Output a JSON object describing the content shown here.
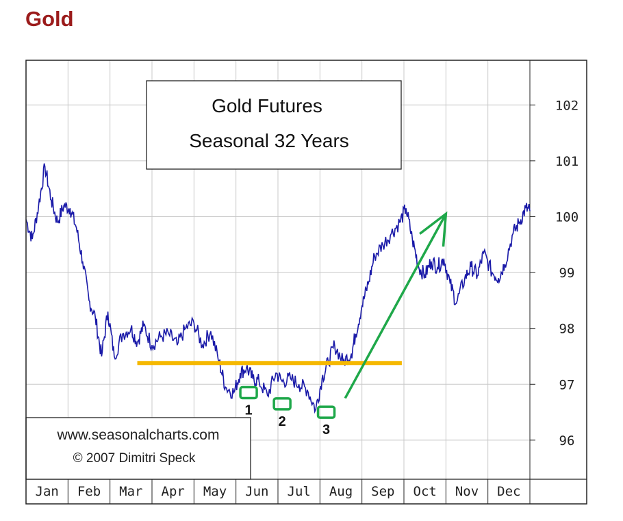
{
  "page": {
    "title": "Gold"
  },
  "colors": {
    "series": "#1a1aa8",
    "support_line": "#f5b800",
    "annotation": "#1fa84a",
    "grid": "#c8c8c8",
    "title": "#9b1b1b"
  },
  "chart_data": {
    "type": "line",
    "title": "Gold Futures",
    "subtitle": "Seasonal 32 Years",
    "credit_line1": "www.seasonalcharts.com",
    "credit_line2": "© 2007   Dimitri Speck",
    "x_categories": [
      "Jan",
      "Feb",
      "Mar",
      "Apr",
      "May",
      "Jun",
      "Jul",
      "Aug",
      "Sep",
      "Oct",
      "Nov",
      "Dec"
    ],
    "y_ticks": [
      96,
      97,
      98,
      99,
      100,
      101,
      102
    ],
    "ylim": [
      95.3,
      102.8
    ],
    "xlim": [
      0,
      12
    ],
    "grid": true,
    "series": [
      {
        "x": [
          0.0,
          0.15,
          0.3,
          0.45,
          0.6,
          0.75,
          0.9,
          1.05,
          1.2,
          1.35,
          1.5,
          1.65,
          1.8,
          1.95,
          2.1,
          2.3,
          2.5,
          2.65,
          2.8,
          3.0,
          3.2,
          3.4,
          3.6,
          3.8,
          4.0,
          4.2,
          4.4,
          4.6,
          4.75,
          4.95,
          5.1,
          5.25,
          5.4,
          5.55,
          5.75,
          5.95,
          6.1,
          6.3,
          6.5,
          6.7,
          6.9,
          7.05,
          7.2,
          7.35,
          7.55,
          7.75,
          7.85,
          8.0,
          8.15,
          8.3,
          8.5,
          8.7,
          8.9,
          9.05,
          9.2,
          9.35,
          9.5,
          9.65,
          9.8,
          9.95,
          10.1,
          10.25,
          10.45,
          10.6,
          10.75,
          10.9,
          11.1,
          11.25,
          11.4,
          11.6,
          11.75,
          11.9,
          12.0
        ],
        "y": [
          99.95,
          99.6,
          100.2,
          100.9,
          100.3,
          99.9,
          100.2,
          100.15,
          99.8,
          99.2,
          98.5,
          98.2,
          97.5,
          98.3,
          97.5,
          97.9,
          98.0,
          97.75,
          98.05,
          97.7,
          97.85,
          97.9,
          97.7,
          98.0,
          98.1,
          97.7,
          97.95,
          97.4,
          96.95,
          96.85,
          97.2,
          97.3,
          97.1,
          97.05,
          96.8,
          97.2,
          97.05,
          97.1,
          97.0,
          96.9,
          96.55,
          97.1,
          97.4,
          97.7,
          97.4,
          97.55,
          97.9,
          98.4,
          98.8,
          99.3,
          99.5,
          99.7,
          99.9,
          100.15,
          99.6,
          99.1,
          98.95,
          99.2,
          99.1,
          99.25,
          98.8,
          98.45,
          98.9,
          99.1,
          98.95,
          99.35,
          99.0,
          98.9,
          99.15,
          99.7,
          99.9,
          100.15,
          100.1
        ]
      }
    ],
    "support_level": 97.38,
    "support_range": [
      2.65,
      8.95
    ],
    "lows": [
      {
        "label": "1",
        "x": 5.3,
        "y": 96.85
      },
      {
        "label": "2",
        "x": 6.1,
        "y": 96.65
      },
      {
        "label": "3",
        "x": 7.15,
        "y": 96.5
      }
    ],
    "arrow": {
      "from": [
        7.6,
        96.75
      ],
      "to": [
        10.0,
        100.05
      ]
    }
  }
}
